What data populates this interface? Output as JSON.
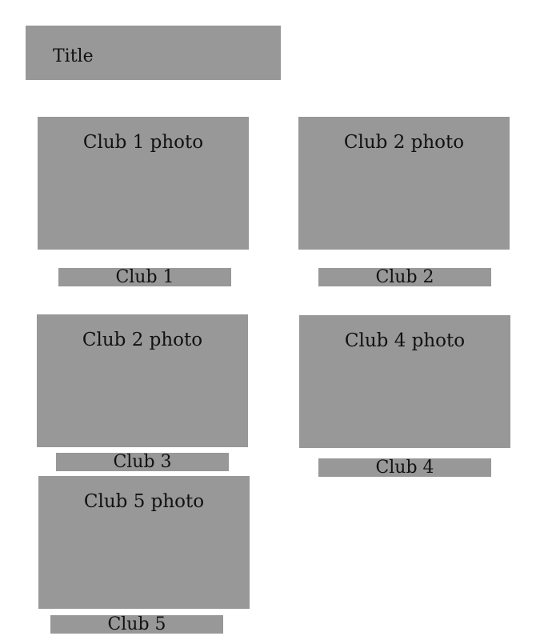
{
  "title": "Title",
  "cards": [
    {
      "photo": "Club 1 photo",
      "label": "Club 1"
    },
    {
      "photo": "Club 2 photo",
      "label": "Club 2"
    },
    {
      "photo": "Club 2 photo",
      "label": "Club 3"
    },
    {
      "photo": "Club 4 photo",
      "label": "Club 4"
    },
    {
      "photo": "Club 5 photo",
      "label": "Club 5"
    }
  ],
  "colors": {
    "box_fill": "#989898",
    "text": "#111111",
    "background": "#ffffff"
  }
}
